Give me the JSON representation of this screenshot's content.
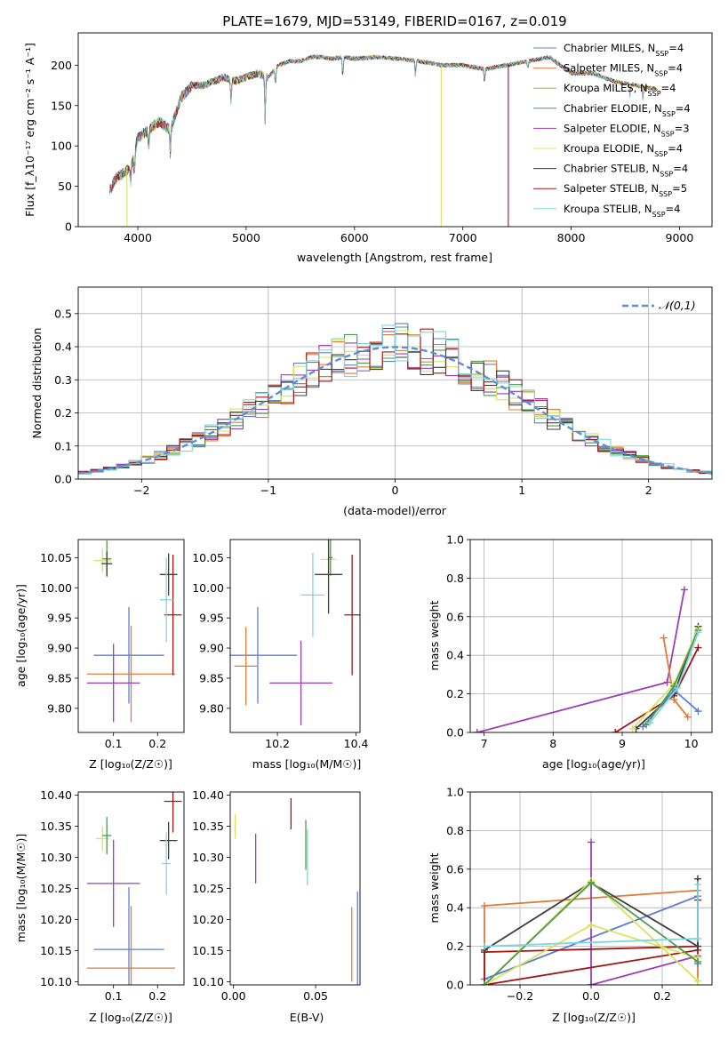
{
  "figure": {
    "title": "PLATE=1679, MJD=53149, FIBERID=0167, z=0.019"
  },
  "colors": {
    "series": [
      "#5b7fd6",
      "#e07b39",
      "#d4a017",
      "#4c9a4c",
      "#9b3fb6",
      "#d9e35a",
      "#3d3d3d",
      "#a31515",
      "#7fd6e0"
    ],
    "pink": "#e57fb9",
    "grid": "#b0b0b0",
    "normal": "#5b8fd6"
  },
  "chart_data": [
    {
      "type": "line",
      "name": "spectrum",
      "xlabel": "wavelength [Angstrom, rest frame]",
      "ylabel": "Flux [f_λ10⁻¹⁷ erg cm⁻² s⁻¹ A⁻¹]",
      "xlim": [
        3450,
        9300
      ],
      "ylim": [
        0,
        240
      ],
      "xticks": [
        4000,
        5000,
        6000,
        7000,
        8000,
        9000
      ],
      "yticks": [
        0,
        50,
        100,
        150,
        200
      ],
      "grid": false,
      "legend_position": "top-right",
      "legend": [
        "Chabrier MILES, N_SSP=4",
        "Salpeter MILES, N_SSP=4",
        "Kroupa MILES, N_SSP=4",
        "Chabrier ELODIE, N_SSP=4",
        "Salpeter ELODIE, N_SSP=3",
        "Kroupa ELODIE, N_SSP=4",
        "Chabrier STELIB, N_SSP=4",
        "Salpeter STELIB, N_SSP=5",
        "Kroupa STELIB, N_SSP=4"
      ],
      "continuum": {
        "x": [
          3740,
          3800,
          3900,
          3950,
          4000,
          4100,
          4200,
          4300,
          4400,
          4500,
          4600,
          4700,
          4800,
          4900,
          5000,
          5100,
          5200,
          5300,
          5400,
          5500,
          5600,
          5700,
          5800,
          5900,
          6000,
          6200,
          6400,
          6600,
          6800,
          7000,
          7200,
          7400,
          7600,
          7800,
          8000,
          8200,
          8400,
          8600,
          8800
        ],
        "y": [
          45,
          60,
          70,
          80,
          110,
          120,
          130,
          120,
          160,
          175,
          175,
          180,
          185,
          180,
          185,
          190,
          185,
          200,
          205,
          205,
          210,
          210,
          208,
          210,
          208,
          210,
          208,
          205,
          200,
          200,
          195,
          200,
          205,
          210,
          190,
          190,
          180,
          175,
          170
        ]
      },
      "dips": [
        {
          "x": 3934,
          "depth": 25
        },
        {
          "x": 3968,
          "depth": 25
        },
        {
          "x": 4101,
          "depth": 25
        },
        {
          "x": 4300,
          "depth": 30
        },
        {
          "x": 4861,
          "depth": 30
        },
        {
          "x": 5175,
          "depth": 55
        },
        {
          "x": 5270,
          "depth": 20
        },
        {
          "x": 5892,
          "depth": 25
        },
        {
          "x": 6563,
          "depth": 20
        },
        {
          "x": 7200,
          "depth": 15
        },
        {
          "x": 7600,
          "depth": 10
        },
        {
          "x": 8542,
          "depth": 15
        },
        {
          "x": 8662,
          "depth": 15
        }
      ],
      "drops": [
        {
          "x": 3900,
          "color_index": 5
        },
        {
          "x": 6800,
          "color_index": 5
        },
        {
          "x": 7420,
          "color_index": 7
        }
      ]
    },
    {
      "type": "histogram",
      "name": "residuals",
      "xlabel": "(data-model)/error",
      "ylabel": "Normed distribution",
      "xlim": [
        -2.5,
        2.5
      ],
      "ylim": [
        0,
        0.58
      ],
      "xticks": [
        -2,
        -1,
        0,
        1,
        2
      ],
      "yticks": [
        0.0,
        0.1,
        0.2,
        0.3,
        0.4,
        0.5
      ],
      "grid": true,
      "legend_position": "top-right",
      "normal_label": "𝒩(0,1)",
      "bin_width": 0.1
    },
    {
      "type": "scatter",
      "name": "age-vs-Z",
      "xlabel": "Z [log₁₀(Z/Z☉)]",
      "ylabel": "age  [log₁₀(age/yr)]",
      "xlim": [
        0.02,
        0.26
      ],
      "ylim": [
        9.76,
        10.08
      ],
      "xticks": [
        0.1,
        0.2
      ],
      "yticks": [
        9.8,
        9.85,
        9.9,
        9.95,
        10.0,
        10.05
      ],
      "grid": false,
      "points": [
        {
          "x": 0.075,
          "xerr": 0.02,
          "y": 10.045,
          "yerr": 0.02,
          "c": 5
        },
        {
          "x": 0.085,
          "xerr": 0.01,
          "y": 10.048,
          "yerr": 0.03,
          "c": 3
        },
        {
          "x": 0.085,
          "xerr": 0.012,
          "y": 10.04,
          "yerr": 0.02,
          "c": 6
        },
        {
          "x": 0.135,
          "xerr": 0.08,
          "y": 9.888,
          "yerr": 0.08,
          "c": 0
        },
        {
          "x": 0.14,
          "xerr": 0.1,
          "y": 9.857,
          "yerr": 0.08,
          "c": 1
        },
        {
          "x": 0.1,
          "xerr": 0.06,
          "y": 9.842,
          "yerr": 0.065,
          "c": 4
        },
        {
          "x": 0.18,
          "xerr": 0.07,
          "y": 9.935,
          "yerr": 0.06,
          "c": 10
        },
        {
          "x": 0.225,
          "xerr": 0.02,
          "y": 10.022,
          "yerr": 0.035,
          "c": 6
        },
        {
          "x": 0.235,
          "xerr": 0.02,
          "y": 9.955,
          "yerr": 0.1,
          "c": 7
        },
        {
          "x": 0.22,
          "xerr": 0.015,
          "y": 9.98,
          "yerr": 0.07,
          "c": 8
        }
      ]
    },
    {
      "type": "scatter",
      "name": "age-vs-mass",
      "xlabel": "mass [log₁₀(M/M☉)]",
      "ylabel": "",
      "xlim": [
        10.08,
        10.41
      ],
      "ylim": [
        9.76,
        10.08
      ],
      "xticks": [
        10.2,
        10.4
      ],
      "yticks": [
        9.8,
        9.85,
        9.9,
        9.95,
        10.0,
        10.05
      ],
      "grid": false,
      "points": [
        {
          "x": 10.33,
          "xerr": 0.02,
          "y": 10.047,
          "yerr": 0.02,
          "c": 5
        },
        {
          "x": 10.335,
          "xerr": 0.005,
          "y": 10.05,
          "yerr": 0.03,
          "c": 3
        },
        {
          "x": 10.33,
          "xerr": 0.035,
          "y": 10.022,
          "yerr": 0.065,
          "c": 6
        },
        {
          "x": 10.15,
          "xerr": 0.1,
          "y": 9.888,
          "yerr": 0.08,
          "c": 0
        },
        {
          "x": 10.12,
          "xerr": 0.03,
          "y": 9.87,
          "yerr": 0.065,
          "c": 1
        },
        {
          "x": 10.26,
          "xerr": 0.08,
          "y": 9.842,
          "yerr": 0.07,
          "c": 4
        },
        {
          "x": 10.33,
          "xerr": 0.06,
          "y": 9.935,
          "yerr": 0.06,
          "c": 10
        },
        {
          "x": 10.39,
          "xerr": 0.02,
          "y": 9.955,
          "yerr": 0.1,
          "c": 7
        },
        {
          "x": 10.29,
          "xerr": 0.03,
          "y": 9.988,
          "yerr": 0.07,
          "c": 8
        }
      ]
    },
    {
      "type": "line",
      "name": "weight-vs-age",
      "xlabel": "age  [log₁₀(age/yr)]",
      "ylabel": "mass weight",
      "xlim": [
        6.8,
        10.3
      ],
      "ylim": [
        0,
        1.0
      ],
      "xticks": [
        7,
        8,
        9,
        10
      ],
      "yticks": [
        0.0,
        0.2,
        0.4,
        0.6,
        0.8,
        1.0
      ],
      "grid": true,
      "series": [
        {
          "c": 4,
          "x": [
            6.9,
            9.65,
            9.9
          ],
          "y": [
            0.0,
            0.26,
            0.74
          ]
        },
        {
          "c": 7,
          "x": [
            8.9,
            9.75,
            10.1
          ],
          "y": [
            0.0,
            0.19,
            0.44
          ]
        },
        {
          "c": 1,
          "x": [
            9.6,
            9.75,
            9.95
          ],
          "y": [
            0.49,
            0.17,
            0.08
          ]
        },
        {
          "c": 6,
          "x": [
            9.2,
            9.75,
            10.1
          ],
          "y": [
            0.02,
            0.2,
            0.55
          ]
        },
        {
          "c": 0,
          "x": [
            9.3,
            9.75,
            10.1
          ],
          "y": [
            0.03,
            0.22,
            0.11
          ]
        },
        {
          "c": 5,
          "x": [
            9.15,
            9.75,
            10.1
          ],
          "y": [
            0.02,
            0.25,
            0.54
          ]
        },
        {
          "c": 3,
          "x": [
            9.35,
            9.75,
            10.1
          ],
          "y": [
            0.04,
            0.24,
            0.53
          ]
        },
        {
          "c": 8,
          "x": [
            9.4,
            9.8,
            10.1
          ],
          "y": [
            0.05,
            0.23,
            0.52
          ]
        }
      ]
    },
    {
      "type": "scatter",
      "name": "mass-vs-Z",
      "xlabel": "Z [log₁₀(Z/Z☉)]",
      "ylabel": "mass [log₁₀(M/M☉)]",
      "xlim": [
        0.02,
        0.26
      ],
      "ylim": [
        10.095,
        10.405
      ],
      "xticks": [
        0.1,
        0.2
      ],
      "yticks": [
        10.1,
        10.15,
        10.2,
        10.25,
        10.3,
        10.35,
        10.4
      ],
      "grid": false,
      "points": [
        {
          "x": 0.075,
          "xerr": 0.015,
          "y": 10.33,
          "yerr": 0.02,
          "c": 5
        },
        {
          "x": 0.085,
          "xerr": 0.01,
          "y": 10.335,
          "yerr": 0.03,
          "c": 3
        },
        {
          "x": 0.135,
          "xerr": 0.08,
          "y": 10.152,
          "yerr": 0.1,
          "c": 0
        },
        {
          "x": 0.14,
          "xerr": 0.1,
          "y": 10.122,
          "yerr": 0.1,
          "c": 1
        },
        {
          "x": 0.1,
          "xerr": 0.06,
          "y": 10.258,
          "yerr": 0.07,
          "c": 4
        },
        {
          "x": 0.18,
          "xerr": 0.06,
          "y": 10.328,
          "yerr": 0.04,
          "c": 10
        },
        {
          "x": 0.225,
          "xerr": 0.02,
          "y": 10.327,
          "yerr": 0.03,
          "c": 6
        },
        {
          "x": 0.235,
          "xerr": 0.02,
          "y": 10.39,
          "yerr": 0.05,
          "c": 7
        },
        {
          "x": 0.22,
          "xerr": 0.01,
          "y": 10.29,
          "yerr": 0.05,
          "c": 8
        }
      ]
    },
    {
      "type": "scatter",
      "name": "mass-vs-EBV",
      "xlabel": "E(B-V)",
      "ylabel": "",
      "xlim": [
        -0.002,
        0.077
      ],
      "ylim": [
        10.095,
        10.405
      ],
      "xticks": [
        0.0,
        0.05
      ],
      "yticks": [
        10.1,
        10.15,
        10.2,
        10.25,
        10.3,
        10.35,
        10.4
      ],
      "grid": false,
      "points": [
        {
          "x": 0.001,
          "y": 10.35,
          "yerr": 0.02,
          "c": 5
        },
        {
          "x": 0.0135,
          "y": 10.298,
          "yerr": 0.04,
          "c": 4
        },
        {
          "x": 0.035,
          "y": 10.37,
          "yerr": 0.025,
          "c": 7
        },
        {
          "x": 0.044,
          "y": 10.32,
          "yerr": 0.04,
          "c": 3
        },
        {
          "x": 0.045,
          "y": 10.3,
          "yerr": 0.045,
          "c": 8
        },
        {
          "x": 0.069,
          "y": 10.31,
          "yerr": 0.055,
          "c": 10
        },
        {
          "x": 0.072,
          "y": 10.16,
          "yerr": 0.06,
          "c": 1
        },
        {
          "x": 0.0755,
          "y": 10.17,
          "yerr": 0.075,
          "c": 0
        }
      ]
    },
    {
      "type": "line",
      "name": "weight-vs-Z",
      "xlabel": "Z [log₁₀(Z/Z☉)]",
      "ylabel": "mass weight",
      "xlim": [
        -0.34,
        0.34
      ],
      "ylim": [
        0,
        1.0
      ],
      "xticks": [
        -0.2,
        0.0,
        0.2
      ],
      "yticks": [
        0.0,
        0.2,
        0.4,
        0.6,
        0.8,
        1.0
      ],
      "grid": true,
      "series": [
        {
          "c": 1,
          "x": [
            -0.3,
            -0.3,
            0.3,
            0.3
          ],
          "y": [
            0.0,
            0.41,
            0.49,
            0.02
          ]
        },
        {
          "c": 0,
          "x": [
            -0.3,
            0.3,
            0.3
          ],
          "y": [
            0.03,
            0.46,
            0.11
          ]
        },
        {
          "c": 4,
          "x": [
            0.0,
            0.0,
            0.0,
            0.3
          ],
          "y": [
            0.74,
            0.0,
            0.0,
            0.15
          ]
        },
        {
          "c": 7,
          "x": [
            -0.3,
            -0.3,
            0.3,
            0.3
          ],
          "y": [
            0.0,
            0.17,
            0.2,
            0.44
          ]
        },
        {
          "c": 7,
          "x": [
            -0.3,
            0.3
          ],
          "y": [
            0.0,
            0.18
          ]
        },
        {
          "c": 6,
          "x": [
            -0.3,
            0.0,
            0.3,
            0.3
          ],
          "y": [
            0.18,
            0.53,
            0.2,
            0.55
          ]
        },
        {
          "c": 5,
          "x": [
            -0.3,
            0.0,
            0.3
          ],
          "y": [
            0.0,
            0.54,
            0.02
          ]
        },
        {
          "c": 5,
          "x": [
            -0.3,
            0.0,
            0.3
          ],
          "y": [
            0.0,
            0.31,
            0.14
          ]
        },
        {
          "c": 3,
          "x": [
            -0.3,
            0.0,
            0.3
          ],
          "y": [
            0.0,
            0.53,
            0.12
          ]
        },
        {
          "c": 8,
          "x": [
            -0.3,
            0.3,
            0.3
          ],
          "y": [
            0.2,
            0.24,
            0.52
          ]
        },
        {
          "c": 10,
          "x": [
            -0.3,
            0.3
          ],
          "y": [
            0.18,
            0.22
          ]
        }
      ]
    }
  ]
}
